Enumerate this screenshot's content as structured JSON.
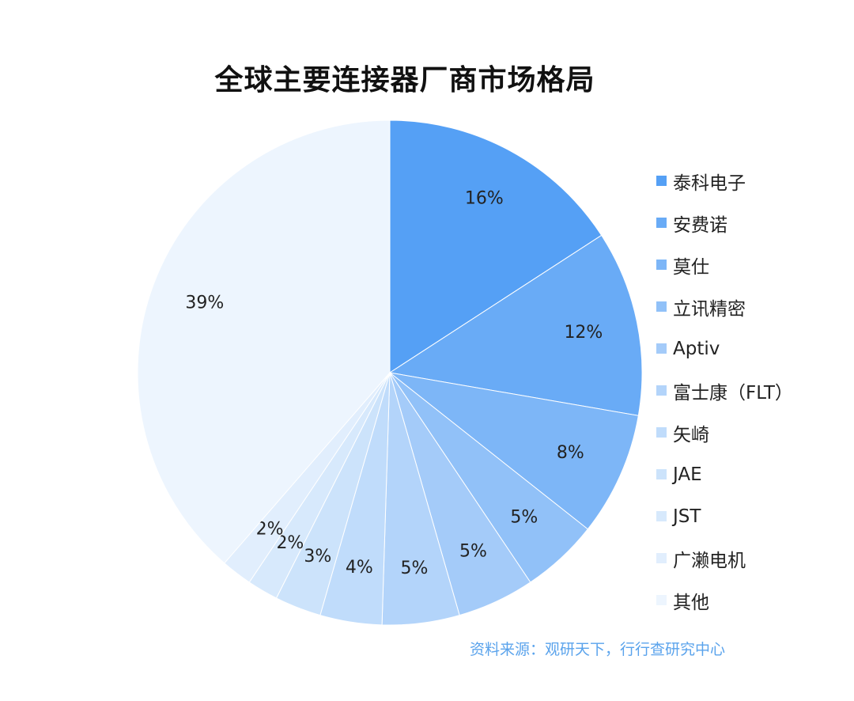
{
  "source_note": "资料来源：观研天下，行行查研究中心",
  "chart_data": {
    "type": "pie",
    "title": "全球主要连接器厂商市场格局",
    "legend_position": "right",
    "slices": [
      {
        "name": "泰科电子",
        "value": 16,
        "label": "16%",
        "color": "#55a0f5"
      },
      {
        "name": "安费诺",
        "value": 12,
        "label": "12%",
        "color": "#69abf6"
      },
      {
        "name": "莫仕",
        "value": 8,
        "label": "8%",
        "color": "#7db6f7"
      },
      {
        "name": "立讯精密",
        "value": 5,
        "label": "5%",
        "color": "#91c1f8"
      },
      {
        "name": "Aptiv",
        "value": 5,
        "label": "5%",
        "color": "#a4cbf9"
      },
      {
        "name": "富士康（FLT）",
        "value": 5,
        "label": "5%",
        "color": "#b3d4fa"
      },
      {
        "name": "矢崎",
        "value": 4,
        "label": "4%",
        "color": "#c0dcfb"
      },
      {
        "name": "JAE",
        "value": 3,
        "label": "3%",
        "color": "#cce3fb"
      },
      {
        "name": "JST",
        "value": 2,
        "label": "2%",
        "color": "#d7e9fc"
      },
      {
        "name": "广濑电机",
        "value": 2,
        "label": "2%",
        "color": "#e1eefd"
      },
      {
        "name": "其他",
        "value": 39,
        "label": "39%",
        "color": "#edf5fe"
      }
    ]
  }
}
